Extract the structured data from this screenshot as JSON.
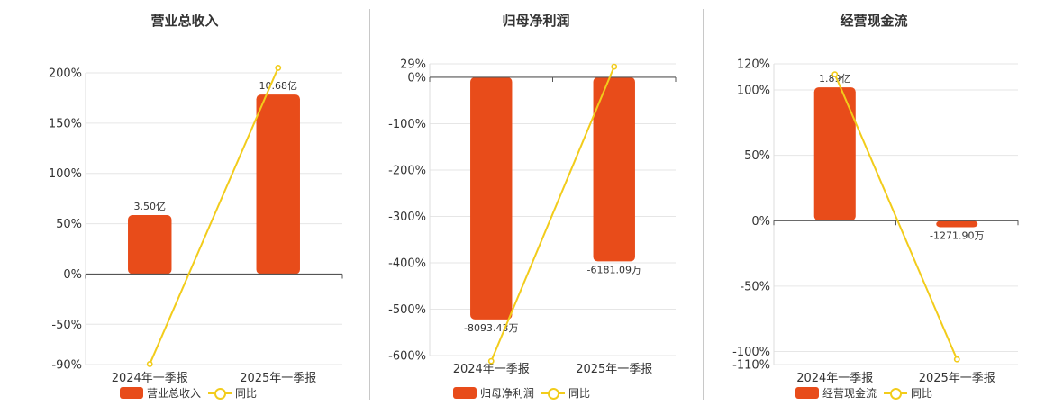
{
  "colors": {
    "bar": "#e84c1a",
    "line": "#f2cc1b",
    "grid": "#e6e6e6",
    "axis": "#555555"
  },
  "chart_data": [
    {
      "type": "bar",
      "title": "营业总收入",
      "categories": [
        "2024年一季报",
        "2025年一季报"
      ],
      "bar_series": {
        "name": "营业总收入",
        "values": [
          58.6,
          178.4
        ],
        "labels": [
          "3.50亿",
          "10.68亿"
        ]
      },
      "line_series": {
        "name": "同比",
        "values": [
          -89.5,
          205
        ]
      },
      "ylim": [
        -90,
        200
      ],
      "yticks": [
        -90,
        -50,
        0,
        50,
        100,
        150,
        200
      ],
      "ytick_labels": [
        "-90%",
        "-50%",
        "0%",
        "50%",
        "100%",
        "150%",
        "200%"
      ],
      "grid": true,
      "legend": "bottom"
    },
    {
      "type": "bar",
      "title": "归母净利润",
      "categories": [
        "2024年一季报",
        "2025年一季报"
      ],
      "bar_series": {
        "name": "归母净利润",
        "values": [
          -522,
          -397
        ],
        "labels": [
          "-8093.43万",
          "-6181.09万"
        ]
      },
      "line_series": {
        "name": "同比",
        "values": [
          -612,
          23
        ]
      },
      "ylim": [
        -600,
        29
      ],
      "yticks": [
        -600,
        -500,
        -400,
        -300,
        -200,
        -100,
        0,
        29
      ],
      "ytick_labels": [
        "-600%",
        "-500%",
        "-400%",
        "-300%",
        "-200%",
        "-100%",
        "0%",
        "29%"
      ],
      "grid": true,
      "legend": "bottom"
    },
    {
      "type": "bar",
      "title": "经营现金流",
      "categories": [
        "2024年一季报",
        "2025年一季报"
      ],
      "bar_series": {
        "name": "经营现金流",
        "values": [
          102,
          -5
        ],
        "labels": [
          "1.89亿",
          "-1271.90万"
        ]
      },
      "line_series": {
        "name": "同比",
        "values": [
          112,
          -106
        ]
      },
      "ylim": [
        -110,
        120
      ],
      "yticks": [
        -110,
        -100,
        -50,
        0,
        50,
        100,
        120
      ],
      "ytick_labels": [
        "-110%",
        "-100%",
        "-50%",
        "0%",
        "50%",
        "100%",
        "120%"
      ],
      "grid": true,
      "legend": "bottom"
    }
  ]
}
